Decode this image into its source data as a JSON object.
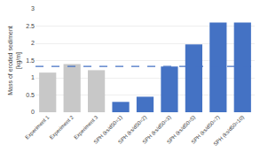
{
  "chart_data": {
    "type": "bar",
    "ylabel": "Mass of eroded sediment\n[kg/m]",
    "categories": [
      "Experiment 1",
      "Experiment 2",
      "Experiment 3",
      "SPH (ks/d50=1)",
      "SPH (ks/d50=2)",
      "SPH (ks/d50=3)",
      "SPH (ks/d50=5)",
      "SPH (ks/d50=7)",
      "SPH (ks/d50=10)"
    ],
    "values": [
      1.15,
      1.4,
      1.22,
      0.3,
      0.45,
      1.33,
      1.97,
      2.6,
      2.6
    ],
    "colors": [
      "#c8c8c8",
      "#c8c8c8",
      "#c8c8c8",
      "#4472c4",
      "#4472c4",
      "#4472c4",
      "#4472c4",
      "#4472c4",
      "#4472c4"
    ],
    "hline": {
      "y": 1.33,
      "color": "#4472c4",
      "line_style": "dashed"
    },
    "ylim": [
      0,
      3.0
    ],
    "yticks": [
      0,
      0.5,
      1,
      1.5,
      2,
      2.5,
      3
    ],
    "grid": true
  }
}
